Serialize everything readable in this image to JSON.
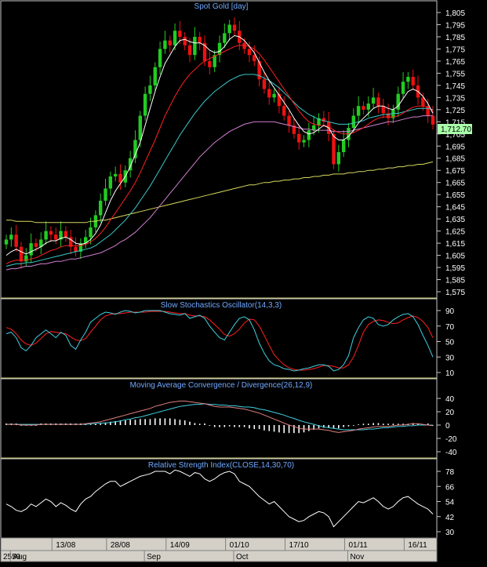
{
  "colors": {
    "background": "#000000",
    "candle_up": "#22cc22",
    "candle_down": "#ee1111",
    "ma_fast": "#ffffff",
    "ma_red": "#ff2020",
    "ma_cyan": "#3cc8c8",
    "ma_magenta": "#d080d0",
    "ma_long": "#d8d860",
    "stoch_k": "#40d0e0",
    "stoch_d": "#ff2020",
    "macd_line": "#e08080",
    "macd_signal": "#40d0e0",
    "macd_hist": "#ffffff",
    "rsi_line": "#ffffff",
    "last_price_bg": "#aaffaa"
  },
  "chart_data": [
    {
      "type": "candlestick",
      "title": "Spot Gold [day]",
      "ylim": [
        1575,
        1805
      ],
      "y_ticks": [
        "1,805",
        "1,795",
        "1,785",
        "1,775",
        "1,765",
        "1,755",
        "1,745",
        "1,735",
        "1,725",
        "1,715",
        "1,705",
        "1,695",
        "1,685",
        "1,675",
        "1,665",
        "1,655",
        "1,645",
        "1,635",
        "1,625",
        "1,615",
        "1,605",
        "1,595",
        "1,585",
        "1,575"
      ],
      "last_price_label": "1,712.70",
      "last_price": 1712.7,
      "close": [
        1618,
        1622,
        1612,
        1600,
        1605,
        1615,
        1612,
        1618,
        1625,
        1622,
        1618,
        1625,
        1620,
        1612,
        1608,
        1615,
        1620,
        1628,
        1638,
        1650,
        1660,
        1670,
        1672,
        1665,
        1675,
        1685,
        1700,
        1720,
        1738,
        1745,
        1760,
        1775,
        1782,
        1778,
        1790,
        1785,
        1778,
        1770,
        1785,
        1780,
        1765,
        1760,
        1770,
        1780,
        1788,
        1795,
        1790,
        1780,
        1775,
        1770,
        1765,
        1750,
        1742,
        1735,
        1738,
        1728,
        1720,
        1712,
        1705,
        1698,
        1700,
        1708,
        1712,
        1718,
        1715,
        1705,
        1680,
        1690,
        1700,
        1710,
        1720,
        1728,
        1725,
        1730,
        1735,
        1728,
        1722,
        1718,
        1725,
        1738,
        1748,
        1752,
        1745,
        1735,
        1728,
        1720,
        1712.7
      ],
      "ma_fast": [
        1605,
        1608,
        1610,
        1608,
        1606,
        1608,
        1610,
        1612,
        1615,
        1617,
        1617,
        1619,
        1620,
        1618,
        1615,
        1614,
        1615,
        1618,
        1623,
        1630,
        1640,
        1650,
        1658,
        1664,
        1670,
        1678,
        1688,
        1698,
        1712,
        1726,
        1740,
        1752,
        1763,
        1770,
        1777,
        1782,
        1783,
        1781,
        1780,
        1780,
        1778,
        1774,
        1772,
        1773,
        1777,
        1783,
        1786,
        1785,
        1782,
        1777,
        1772,
        1764,
        1756,
        1749,
        1743,
        1737,
        1731,
        1725,
        1718,
        1712,
        1707,
        1705,
        1706,
        1709,
        1712,
        1710,
        1703,
        1700,
        1700,
        1703,
        1708,
        1714,
        1718,
        1722,
        1726,
        1728,
        1728,
        1726,
        1725,
        1728,
        1734,
        1740,
        1742,
        1740,
        1736,
        1730,
        1722
      ],
      "ma_red": [
        1598,
        1600,
        1601,
        1601,
        1601,
        1602,
        1603,
        1605,
        1607,
        1609,
        1610,
        1612,
        1613,
        1613,
        1613,
        1613,
        1614,
        1616,
        1619,
        1623,
        1628,
        1634,
        1640,
        1646,
        1652,
        1658,
        1665,
        1673,
        1682,
        1691,
        1700,
        1710,
        1720,
        1728,
        1736,
        1743,
        1749,
        1754,
        1758,
        1762,
        1765,
        1767,
        1769,
        1771,
        1773,
        1775,
        1777,
        1778,
        1778,
        1777,
        1775,
        1771,
        1766,
        1760,
        1754,
        1748,
        1742,
        1736,
        1730,
        1724,
        1719,
        1715,
        1713,
        1712,
        1712,
        1711,
        1708,
        1706,
        1705,
        1705,
        1706,
        1708,
        1710,
        1713,
        1716,
        1718,
        1719,
        1719,
        1719,
        1720,
        1722,
        1725,
        1727,
        1728,
        1728,
        1727,
        1724
      ],
      "ma_cyan": [
        1596,
        1597,
        1598,
        1598,
        1599,
        1599,
        1600,
        1601,
        1602,
        1603,
        1604,
        1605,
        1606,
        1607,
        1608,
        1609,
        1610,
        1611,
        1613,
        1616,
        1619,
        1622,
        1626,
        1630,
        1634,
        1639,
        1644,
        1650,
        1656,
        1662,
        1669,
        1676,
        1683,
        1690,
        1697,
        1704,
        1710,
        1716,
        1722,
        1727,
        1732,
        1736,
        1740,
        1743,
        1746,
        1749,
        1751,
        1753,
        1754,
        1754,
        1754,
        1753,
        1751,
        1749,
        1746,
        1743,
        1739,
        1735,
        1731,
        1727,
        1724,
        1721,
        1719,
        1717,
        1716,
        1715,
        1714,
        1713,
        1713,
        1713,
        1714,
        1715,
        1716,
        1718,
        1719,
        1720,
        1721,
        1721,
        1722,
        1722,
        1723,
        1724,
        1725,
        1726,
        1726,
        1726,
        1725
      ],
      "ma_magenta": [
        1593,
        1594,
        1594,
        1595,
        1596,
        1596,
        1597,
        1598,
        1598,
        1599,
        1600,
        1600,
        1601,
        1602,
        1602,
        1603,
        1604,
        1605,
        1606,
        1607,
        1609,
        1611,
        1613,
        1616,
        1618,
        1621,
        1624,
        1628,
        1632,
        1636,
        1641,
        1646,
        1651,
        1656,
        1661,
        1666,
        1671,
        1676,
        1681,
        1686,
        1690,
        1694,
        1698,
        1701,
        1704,
        1707,
        1709,
        1711,
        1713,
        1714,
        1715,
        1715,
        1715,
        1715,
        1715,
        1714,
        1713,
        1712,
        1711,
        1710,
        1709,
        1709,
        1708,
        1708,
        1708,
        1708,
        1707,
        1707,
        1707,
        1707,
        1708,
        1709,
        1710,
        1711,
        1712,
        1713,
        1714,
        1715,
        1715,
        1716,
        1717,
        1718,
        1719,
        1719,
        1720,
        1720,
        1720
      ],
      "ma_long": [
        1634,
        1634,
        1633,
        1633,
        1633,
        1633,
        1632,
        1632,
        1632,
        1632,
        1632,
        1632,
        1632,
        1632,
        1632,
        1632,
        1632,
        1633,
        1633,
        1634,
        1634,
        1635,
        1636,
        1637,
        1638,
        1639,
        1640,
        1641,
        1642,
        1643,
        1644,
        1645,
        1646,
        1647,
        1648,
        1649,
        1650,
        1651,
        1652,
        1653,
        1654,
        1655,
        1656,
        1657,
        1658,
        1659,
        1660,
        1661,
        1662,
        1663,
        1663,
        1664,
        1665,
        1665,
        1666,
        1666,
        1667,
        1667,
        1668,
        1668,
        1669,
        1669,
        1670,
        1670,
        1671,
        1671,
        1672,
        1672,
        1672,
        1673,
        1673,
        1674,
        1674,
        1675,
        1675,
        1676,
        1676,
        1677,
        1677,
        1678,
        1678,
        1679,
        1679,
        1680,
        1680,
        1681,
        1682
      ]
    },
    {
      "type": "line",
      "title": "Slow Stochastics Oscillator(14,3,3)",
      "ylim": [
        10,
        90
      ],
      "y_ticks": [
        "90",
        "70",
        "50",
        "30",
        "10"
      ],
      "k": [
        60,
        62,
        55,
        42,
        38,
        45,
        55,
        60,
        65,
        60,
        55,
        62,
        58,
        45,
        40,
        52,
        62,
        75,
        80,
        85,
        88,
        87,
        85,
        88,
        90,
        89,
        87,
        88,
        90,
        90,
        90,
        90,
        88,
        86,
        85,
        84,
        86,
        80,
        82,
        84,
        80,
        70,
        62,
        55,
        52,
        62,
        72,
        80,
        82,
        78,
        65,
        48,
        35,
        25,
        20,
        18,
        15,
        14,
        12,
        13,
        15,
        16,
        18,
        20,
        20,
        18,
        12,
        14,
        20,
        32,
        55,
        68,
        78,
        82,
        80,
        72,
        70,
        72,
        78,
        82,
        85,
        86,
        82,
        72,
        58,
        45,
        30
      ],
      "d": [
        68,
        66,
        60,
        52,
        47,
        45,
        48,
        54,
        60,
        63,
        62,
        61,
        60,
        56,
        52,
        51,
        54,
        62,
        70,
        78,
        83,
        85,
        86,
        86,
        87,
        88,
        88,
        88,
        88,
        89,
        89,
        89,
        89,
        88,
        87,
        86,
        86,
        84,
        83,
        83,
        82,
        78,
        72,
        66,
        59,
        57,
        60,
        66,
        74,
        79,
        78,
        70,
        58,
        45,
        33,
        26,
        20,
        16,
        14,
        13,
        13,
        14,
        15,
        17,
        19,
        19,
        18,
        16,
        16,
        20,
        30,
        45,
        62,
        72,
        76,
        78,
        77,
        75,
        73,
        74,
        78,
        81,
        83,
        81,
        76,
        68,
        55
      ]
    },
    {
      "type": "line+bar",
      "title": "Moving Average Convergence / Divergence(26,12,9)",
      "ylim": [
        -40,
        40
      ],
      "y_ticks": [
        "40",
        "20",
        "0",
        "-20",
        "-40"
      ],
      "macd": [
        1,
        1,
        1,
        0,
        0,
        0,
        0,
        1,
        1,
        1,
        1,
        1,
        1,
        1,
        1,
        1,
        2,
        3,
        4,
        5,
        7,
        9,
        11,
        13,
        15,
        17,
        19,
        21,
        23,
        25,
        28,
        30,
        32,
        34,
        35,
        36,
        36,
        35,
        34,
        33,
        32,
        30,
        28,
        27,
        27,
        27,
        26,
        25,
        24,
        22,
        20,
        18,
        15,
        12,
        9,
        6,
        3,
        0,
        -2,
        -5,
        -6,
        -6,
        -6,
        -6,
        -7,
        -8,
        -10,
        -11,
        -10,
        -9,
        -8,
        -6,
        -5,
        -4,
        -3,
        -2,
        -2,
        -2,
        -1,
        0,
        0,
        1,
        2,
        2,
        1,
        0,
        -1
      ],
      "signal": [
        1,
        1,
        1,
        1,
        1,
        1,
        1,
        1,
        1,
        1,
        1,
        1,
        1,
        1,
        1,
        1,
        1,
        2,
        2,
        3,
        3,
        4,
        5,
        6,
        8,
        9,
        11,
        12,
        14,
        16,
        18,
        20,
        22,
        24,
        26,
        28,
        29,
        30,
        31,
        31,
        32,
        31,
        31,
        30,
        30,
        29,
        29,
        28,
        27,
        27,
        26,
        24,
        23,
        21,
        19,
        17,
        15,
        12,
        10,
        7,
        5,
        3,
        1,
        -1,
        -3,
        -4,
        -5,
        -6,
        -7,
        -7,
        -7,
        -7,
        -7,
        -6,
        -6,
        -5,
        -4,
        -4,
        -3,
        -2,
        -2,
        -1,
        -1,
        0,
        0,
        0,
        0
      ]
    },
    {
      "type": "line",
      "title": "Relative Strength Index(CLOSE,14,30,70)",
      "ylim": [
        30,
        78
      ],
      "y_ticks": [
        "78",
        "66",
        "54",
        "42",
        "30"
      ],
      "values": [
        52,
        50,
        47,
        46,
        48,
        52,
        50,
        53,
        56,
        54,
        50,
        53,
        51,
        48,
        46,
        52,
        56,
        58,
        62,
        65,
        68,
        70,
        70,
        66,
        68,
        70,
        72,
        74,
        75,
        76,
        78,
        78,
        78,
        76,
        79,
        78,
        76,
        74,
        77,
        76,
        72,
        70,
        72,
        75,
        77,
        78,
        76,
        70,
        68,
        66,
        62,
        58,
        55,
        52,
        54,
        50,
        46,
        42,
        40,
        38,
        39,
        42,
        44,
        46,
        45,
        42,
        34,
        38,
        42,
        46,
        50,
        54,
        53,
        55,
        57,
        54,
        50,
        48,
        50,
        54,
        57,
        58,
        55,
        52,
        50,
        48,
        44
      ]
    }
  ],
  "x_axis": {
    "day_labels": [
      "13/08",
      "28/08",
      "14/09",
      "01/10",
      "17/10",
      "01/11",
      "16/11"
    ],
    "month_labels": [
      "2559",
      "Aug",
      "Sep",
      "Oct",
      "Nov"
    ]
  }
}
